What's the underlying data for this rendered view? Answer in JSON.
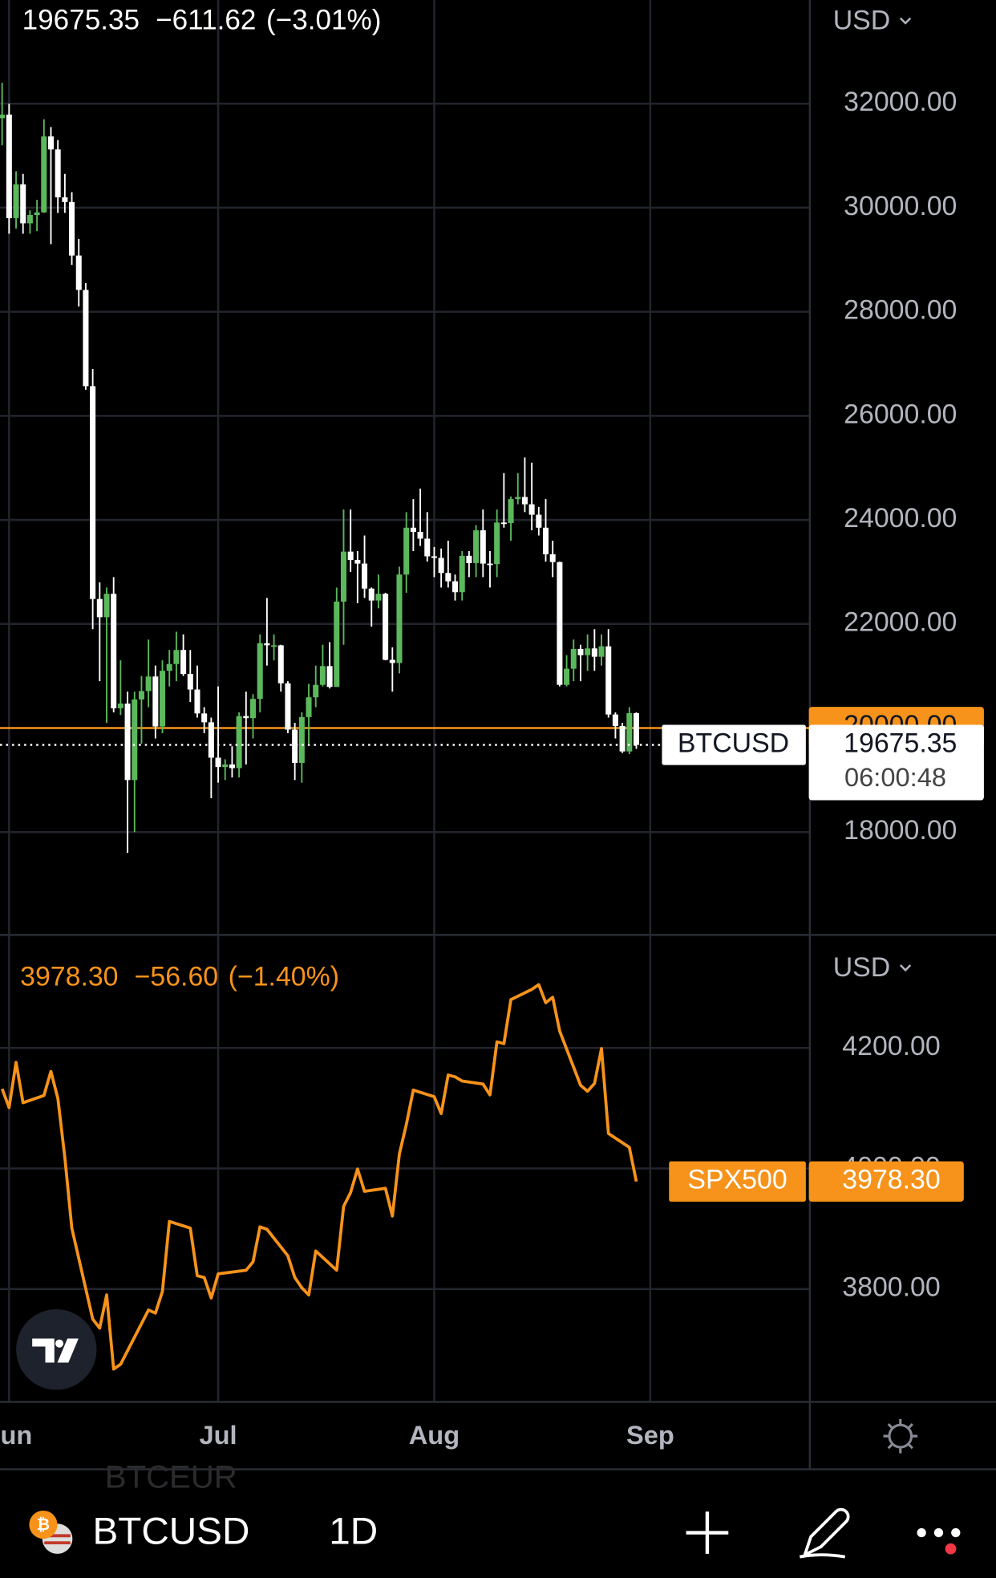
{
  "chart_data": [
    {
      "type": "candlestick",
      "symbol": "BTCUSD",
      "currency": "USD",
      "change": "−611.62",
      "change_percent": "(−3.01%)",
      "countdown": "06:00:48",
      "up_color": "#5cb85c",
      "down_color": "#ffffff",
      "grid": true,
      "x": [
        -1,
        0,
        1,
        2,
        3,
        4,
        5,
        6,
        7,
        8,
        9,
        10,
        11,
        12,
        13,
        14,
        15,
        16,
        17,
        18,
        19,
        20,
        21,
        22,
        23,
        24,
        25,
        26,
        27,
        28,
        29,
        30,
        31,
        32,
        33,
        34,
        35,
        36,
        37,
        38,
        39,
        40,
        41,
        42,
        43,
        44,
        45,
        46,
        47,
        48,
        49,
        50,
        51,
        52,
        53,
        54,
        55,
        56,
        57,
        58,
        59,
        60,
        61,
        62,
        63,
        64,
        65,
        66,
        67,
        68,
        69,
        70,
        71,
        72,
        73,
        74,
        75,
        76,
        77,
        78,
        79,
        80,
        81,
        82,
        83,
        84,
        85,
        86,
        87,
        88,
        89,
        90
      ],
      "open": [
        31720,
        31790,
        29800,
        30450,
        29700,
        29860,
        29910,
        31370,
        31120,
        30200,
        30110,
        29080,
        28420,
        26570,
        22480,
        22130,
        22580,
        20380,
        20470,
        19000,
        20550,
        20710,
        20990,
        20030,
        21100,
        21230,
        21500,
        21040,
        20740,
        20280,
        20110,
        19430,
        19250,
        19300,
        19230,
        20230,
        20190,
        20560,
        21630,
        21590,
        21590,
        20860,
        19970,
        19330,
        20210,
        20590,
        20830,
        21190,
        20790,
        22430,
        23390,
        23230,
        23160,
        22680,
        22450,
        22580,
        21310,
        21250,
        22950,
        23850,
        23770,
        23640,
        23300,
        23270,
        22980,
        22820,
        22610,
        23310,
        23170,
        23800,
        23160,
        23150,
        23950,
        23940,
        24400,
        24440,
        24300,
        24100,
        23850,
        23340,
        23190,
        20830,
        21140,
        21520,
        21400,
        21530,
        21370,
        21570,
        20260,
        20040,
        19550,
        20286.97
      ],
      "high": [
        32400,
        32000,
        30700,
        30650,
        29950,
        30150,
        31700,
        31550,
        31300,
        30650,
        30300,
        29400,
        28550,
        26900,
        22800,
        22700,
        22900,
        21300,
        20700,
        20700,
        21000,
        21700,
        21200,
        21300,
        21500,
        21850,
        21800,
        21500,
        21200,
        20400,
        20200,
        20800,
        19400,
        19650,
        20300,
        20700,
        20650,
        21800,
        22500,
        21800,
        21600,
        20900,
        20100,
        20300,
        20850,
        21200,
        21600,
        21650,
        22700,
        24200,
        24200,
        23400,
        23700,
        22700,
        22950,
        22600,
        21550,
        23100,
        24150,
        24400,
        24600,
        24150,
        23480,
        23450,
        23600,
        22950,
        23400,
        23400,
        23900,
        24200,
        23400,
        24200,
        24900,
        24450,
        24900,
        25200,
        25100,
        24250,
        24400,
        23600,
        23200,
        21400,
        21700,
        21600,
        21800,
        21900,
        21800,
        21900,
        20300,
        20100,
        20400,
        20300
      ],
      "low": [
        31200,
        29500,
        29600,
        29500,
        29500,
        29550,
        29900,
        29300,
        29900,
        29900,
        28900,
        28100,
        26500,
        21900,
        20900,
        20100,
        20300,
        20250,
        17600,
        18000,
        19700,
        20400,
        19800,
        19900,
        20800,
        20900,
        21000,
        20500,
        20200,
        19900,
        18650,
        18950,
        19000,
        19050,
        19050,
        19300,
        19800,
        20300,
        21200,
        21300,
        20700,
        19900,
        19000,
        18950,
        19700,
        20400,
        20800,
        20760,
        20800,
        21600,
        23000,
        22400,
        22500,
        21950,
        22300,
        21300,
        20700,
        21050,
        22600,
        23400,
        23500,
        23200,
        22900,
        22700,
        22700,
        22450,
        22450,
        22900,
        22900,
        22900,
        22700,
        22900,
        23850,
        23600,
        24300,
        24150,
        23800,
        23700,
        23200,
        22900,
        20800,
        20800,
        20900,
        20900,
        21100,
        21100,
        21200,
        20200,
        19800,
        19520,
        19500,
        19600
      ],
      "close": [
        31790,
        29800,
        30450,
        29700,
        29860,
        29910,
        31370,
        31120,
        30200,
        30110,
        29080,
        28420,
        26570,
        22480,
        22130,
        22580,
        20380,
        20470,
        19000,
        20550,
        20710,
        20990,
        20030,
        21100,
        21230,
        21500,
        21040,
        20740,
        20280,
        20110,
        19430,
        19250,
        19300,
        19230,
        20230,
        20190,
        20560,
        21630,
        21590,
        21590,
        20860,
        19970,
        19330,
        20210,
        20590,
        20830,
        21190,
        20790,
        22430,
        23390,
        23230,
        23160,
        22680,
        22450,
        22580,
        21310,
        21250,
        22950,
        23850,
        23770,
        23640,
        23300,
        23270,
        22980,
        22820,
        22610,
        23310,
        23170,
        23800,
        23160,
        23150,
        23950,
        23940,
        24400,
        24440,
        24300,
        24100,
        23850,
        23340,
        23190,
        20830,
        21140,
        21520,
        21400,
        21530,
        21370,
        21570,
        20260,
        20040,
        19550,
        20286.97,
        19675.35
      ],
      "hline": {
        "value": 20000,
        "label": "20000.00",
        "color": "#f7931a"
      },
      "xlim": [
        -1.3,
        114.9
      ],
      "ylim": [
        16043,
        33992
      ],
      "yticks": [
        {
          "value": 18000,
          "label": "18000.00"
        },
        {
          "value": 22000,
          "label": "22000.00"
        },
        {
          "value": 24000,
          "label": "24000.00"
        },
        {
          "value": 26000,
          "label": "26000.00"
        },
        {
          "value": 28000,
          "label": "28000.00"
        },
        {
          "value": 30000,
          "label": "30000.00"
        },
        {
          "value": 32000,
          "label": "32000.00"
        }
      ]
    },
    {
      "type": "line",
      "symbol": "SPX500",
      "currency": "USD",
      "color": "#f7931a",
      "grid": true,
      "last": "3978.30",
      "change": "−56.60",
      "change_percent": "(−1.40%)",
      "x": [
        -1,
        0,
        1,
        2,
        5,
        6,
        7,
        8,
        9,
        12,
        13,
        14,
        15,
        16,
        20,
        21,
        22,
        23,
        26,
        27,
        28,
        29,
        30,
        34,
        35,
        36,
        37,
        40,
        41,
        42,
        43,
        44,
        47,
        48,
        49,
        50,
        51,
        54,
        55,
        56,
        57,
        58,
        61,
        62,
        63,
        64,
        65,
        68,
        69,
        70,
        71,
        72,
        75,
        76,
        77,
        78,
        79,
        82,
        83,
        84,
        85,
        86,
        89,
        90
      ],
      "values": [
        4132,
        4101,
        4176,
        4109,
        4121,
        4161,
        4116,
        4018,
        3901,
        3750,
        3735,
        3790,
        3667,
        3675,
        3765,
        3760,
        3796,
        3912,
        3901,
        3822,
        3819,
        3785,
        3825,
        3831,
        3845,
        3903,
        3899,
        3855,
        3819,
        3802,
        3790,
        3863,
        3831,
        3937,
        3960,
        3999,
        3962,
        3967,
        3921,
        4024,
        4073,
        4130,
        4119,
        4091,
        4155,
        4152,
        4145,
        4140,
        4122,
        4210,
        4207,
        4280,
        4297,
        4305,
        4275,
        4284,
        4228,
        4138,
        4128,
        4141,
        4199,
        4058,
        4034.9,
        3978.3
      ],
      "xlim": [
        -1.3,
        114.9
      ],
      "ylim": [
        3612.6,
        4385.8
      ],
      "xticks": [
        {
          "value": 0,
          "label": "Jun"
        },
        {
          "value": 30,
          "label": "Jul"
        },
        {
          "value": 61,
          "label": "Aug"
        },
        {
          "value": 92,
          "label": "Sep"
        }
      ],
      "yticks": [
        {
          "value": 3800,
          "label": "3800.00"
        },
        {
          "value": 4000,
          "label": "4000.00"
        },
        {
          "value": 4200,
          "label": "4200.00"
        }
      ]
    }
  ],
  "toolbar": {
    "symbol": "BTCUSD",
    "interval": "1D",
    "faded_symbol": "BTCEUR"
  }
}
